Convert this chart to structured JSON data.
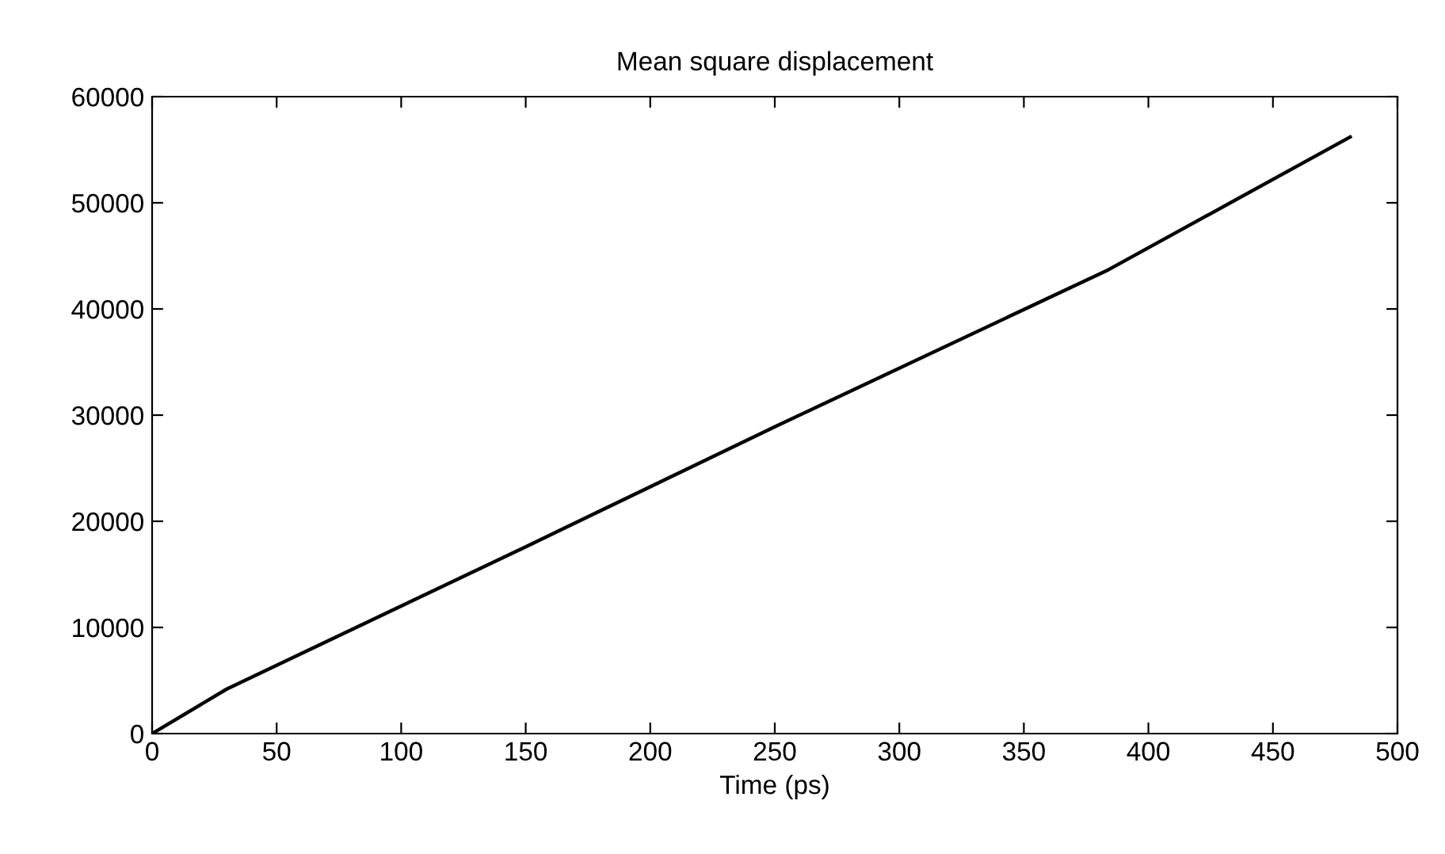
{
  "chart_data": {
    "type": "line",
    "title": "Mean square displacement",
    "xlabel": "Time (ps)",
    "x": [
      0,
      30,
      150,
      250,
      384,
      481
    ],
    "series": [
      {
        "color": "#000000",
        "values": [
          0,
          4200,
          17600,
          28900,
          43700,
          56200
        ]
      }
    ],
    "xlim": [
      0,
      500
    ],
    "xticks": [
      0,
      50,
      100,
      150,
      200,
      250,
      300,
      350,
      400,
      450,
      500
    ],
    "ylim": [
      0,
      60000
    ],
    "yticks": [
      0,
      10000,
      20000,
      30000,
      40000,
      50000,
      60000
    ],
    "grid": false,
    "legend": false
  }
}
